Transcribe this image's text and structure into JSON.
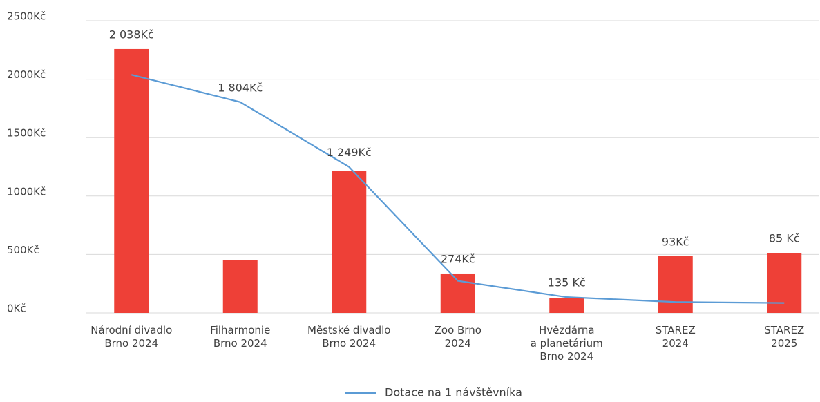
{
  "chart_data": {
    "type": "bar",
    "categories": [
      [
        "Národní divadlo",
        "Brno 2024"
      ],
      [
        "Filharmonie",
        "Brno 2024"
      ],
      [
        "Městské divadlo",
        "Brno 2024"
      ],
      [
        "Zoo Brno",
        "2024"
      ],
      [
        "Hvězdárna",
        "a planetárium",
        "Brno 2024"
      ],
      [
        "STAREZ",
        "2024"
      ],
      [
        "STAREZ",
        "2025"
      ]
    ],
    "series": [
      {
        "type": "bar",
        "color": "#ee4037",
        "values": [
          2258,
          455,
          1217,
          337,
          130,
          485,
          514
        ]
      },
      {
        "type": "line",
        "name": "Dotace na 1 návštěvníka",
        "color": "#5b9bd5",
        "values": [
          2038,
          1804,
          1249,
          274,
          135,
          93,
          85
        ],
        "value_labels": [
          "2 038Kč",
          "1 804Kč",
          "1 249Kč",
          "274Kč",
          "135 Kč",
          "93Kč",
          "85 Kč"
        ]
      }
    ],
    "ylim": [
      0,
      2500
    ],
    "yticks": [
      {
        "value": 0,
        "label": "0Kč"
      },
      {
        "value": 500,
        "label": "500Kč"
      },
      {
        "value": 1000,
        "label": "1000Kč"
      },
      {
        "value": 1500,
        "label": "1500Kč"
      },
      {
        "value": 2000,
        "label": "2000Kč"
      },
      {
        "value": 2500,
        "label": "2500Kč"
      }
    ],
    "grid": true,
    "legend": "bottom"
  }
}
